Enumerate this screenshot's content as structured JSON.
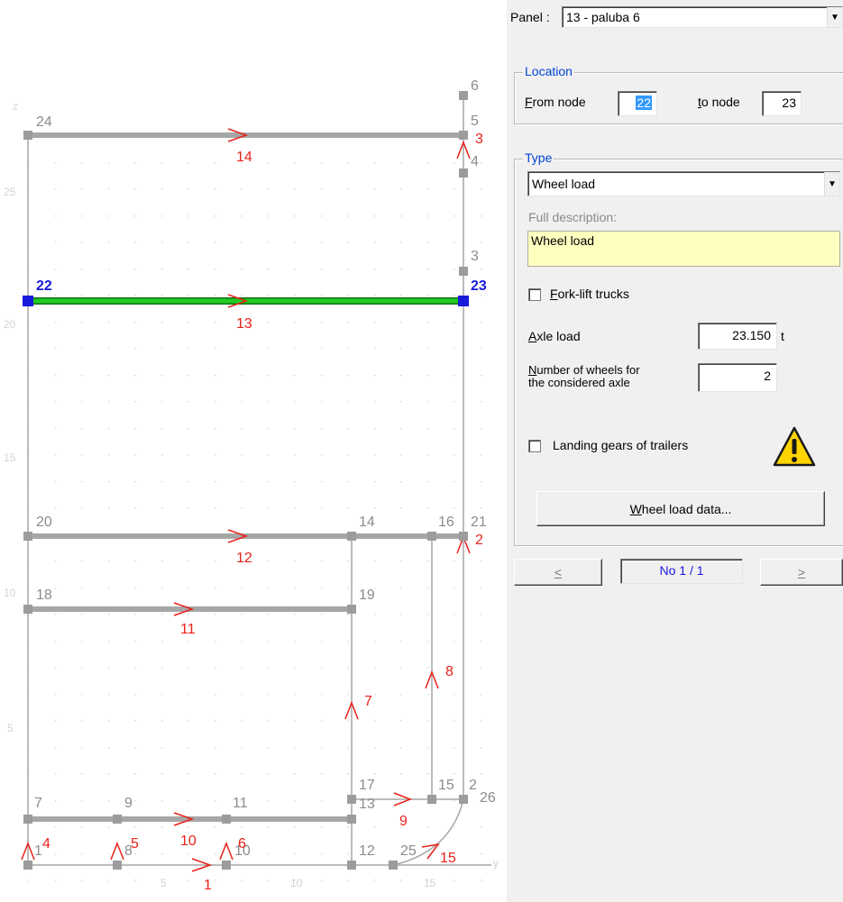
{
  "panel_selector": {
    "label": "Panel :",
    "value": "13 - paluba 6"
  },
  "location": {
    "title": "Location",
    "from_node_label": "From node",
    "from_node_value": "22",
    "to_node_label": "to node",
    "to_node_value": "23"
  },
  "type": {
    "title": "Type",
    "selected": "Wheel load",
    "full_description_label": "Full description:",
    "full_description_value": "Wheel load",
    "forklift_label": "Fork-lift trucks",
    "forklift_checked": false,
    "axle_load_label": "Axle load",
    "axle_load_value": "23.150",
    "axle_load_unit": "t",
    "wheels_label_line1": "Number of wheels for",
    "wheels_label_line2": "the considered axle",
    "wheels_value": "2",
    "landing_gears_label": "Landing gears of trailers",
    "landing_gears_checked": false,
    "warning_icon": "warning-triangle-icon",
    "wheel_load_data_button": "Wheel load data..."
  },
  "navigation": {
    "prev": "<",
    "counter": "No 1 / 1",
    "next": ">"
  },
  "drawing": {
    "colors": {
      "member": "#a6a6a6",
      "selected_member": "#22bb22",
      "node": "#9c9c9c",
      "selected_node": "#1a1adb",
      "member_id": "#e8221a",
      "node_id": "#8c8c8c",
      "thin_line": "#a6a6a6"
    },
    "axis_labels": {
      "z": "z",
      "y": "y",
      "h25": "25",
      "h20": "20",
      "h15": "15",
      "h10": "10",
      "h5": "5",
      "v5": "5",
      "v10": "10",
      "v15": "15"
    },
    "node_labels": {
      "n1": "1",
      "n2": "2",
      "n3": "3",
      "n4": "4",
      "n5": "5",
      "n6": "6",
      "n7": "7",
      "n8": "8",
      "n9": "9",
      "n10": "10",
      "n11": "11",
      "n12": "12",
      "n13": "13",
      "n14": "14",
      "n15": "15",
      "n16": "16",
      "n17": "17",
      "n18": "18",
      "n19": "19",
      "n20": "20",
      "n21": "21",
      "n22": "22",
      "n23": "23",
      "n24": "24",
      "n25": "25",
      "n26": "26"
    },
    "member_labels": {
      "m1": "1",
      "m2": "2",
      "m3": "3",
      "m4": "4",
      "m5": "5",
      "m6": "6",
      "m7": "7",
      "m8": "8",
      "m9": "9",
      "m10": "10",
      "m11": "11",
      "m12": "12",
      "m13": "13",
      "m14": "14",
      "m15": "15"
    }
  }
}
